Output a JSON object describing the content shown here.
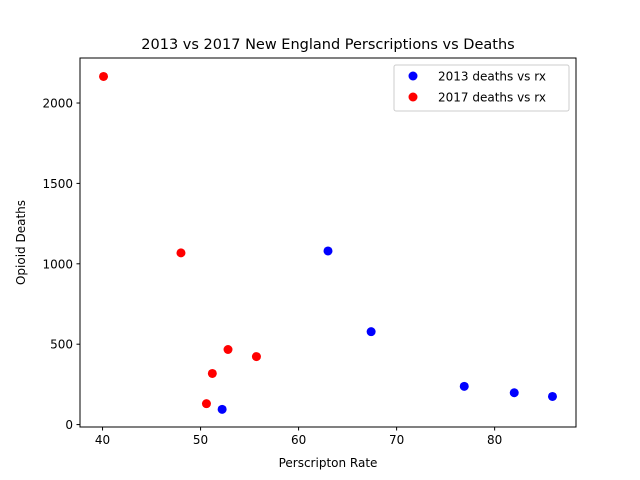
{
  "chart_data": {
    "type": "scatter",
    "title": "2013 vs 2017 New England Perscriptions vs Deaths",
    "xlabel": "Perscripton Rate",
    "ylabel": "Opioid Deaths",
    "xlim": [
      37.7,
      88.3
    ],
    "ylim": [
      -15,
      2280
    ],
    "xticks": [
      40,
      50,
      60,
      70,
      80
    ],
    "yticks": [
      0,
      500,
      1000,
      1500,
      2000
    ],
    "grid": false,
    "legend_position": "top-right",
    "series": [
      {
        "name": "2013 deaths vs rx",
        "color": "#0000ff",
        "points": [
          {
            "x": 63.0,
            "y": 1080
          },
          {
            "x": 67.4,
            "y": 578
          },
          {
            "x": 76.9,
            "y": 238
          },
          {
            "x": 82.0,
            "y": 198
          },
          {
            "x": 85.9,
            "y": 175
          },
          {
            "x": 52.2,
            "y": 95
          }
        ]
      },
      {
        "name": "2017 deaths vs rx",
        "color": "#ff0000",
        "points": [
          {
            "x": 40.1,
            "y": 2165
          },
          {
            "x": 48.0,
            "y": 1068
          },
          {
            "x": 52.8,
            "y": 467
          },
          {
            "x": 55.7,
            "y": 423
          },
          {
            "x": 51.2,
            "y": 318
          },
          {
            "x": 50.6,
            "y": 130
          }
        ]
      }
    ]
  }
}
